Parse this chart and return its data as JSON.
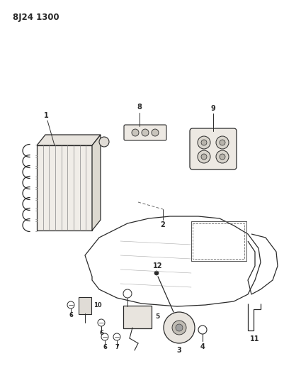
{
  "title_code": "8J24 1300",
  "bg_color": "#ffffff",
  "line_color": "#2a2a2a",
  "fig_width": 4.02,
  "fig_height": 5.33,
  "dpi": 100
}
